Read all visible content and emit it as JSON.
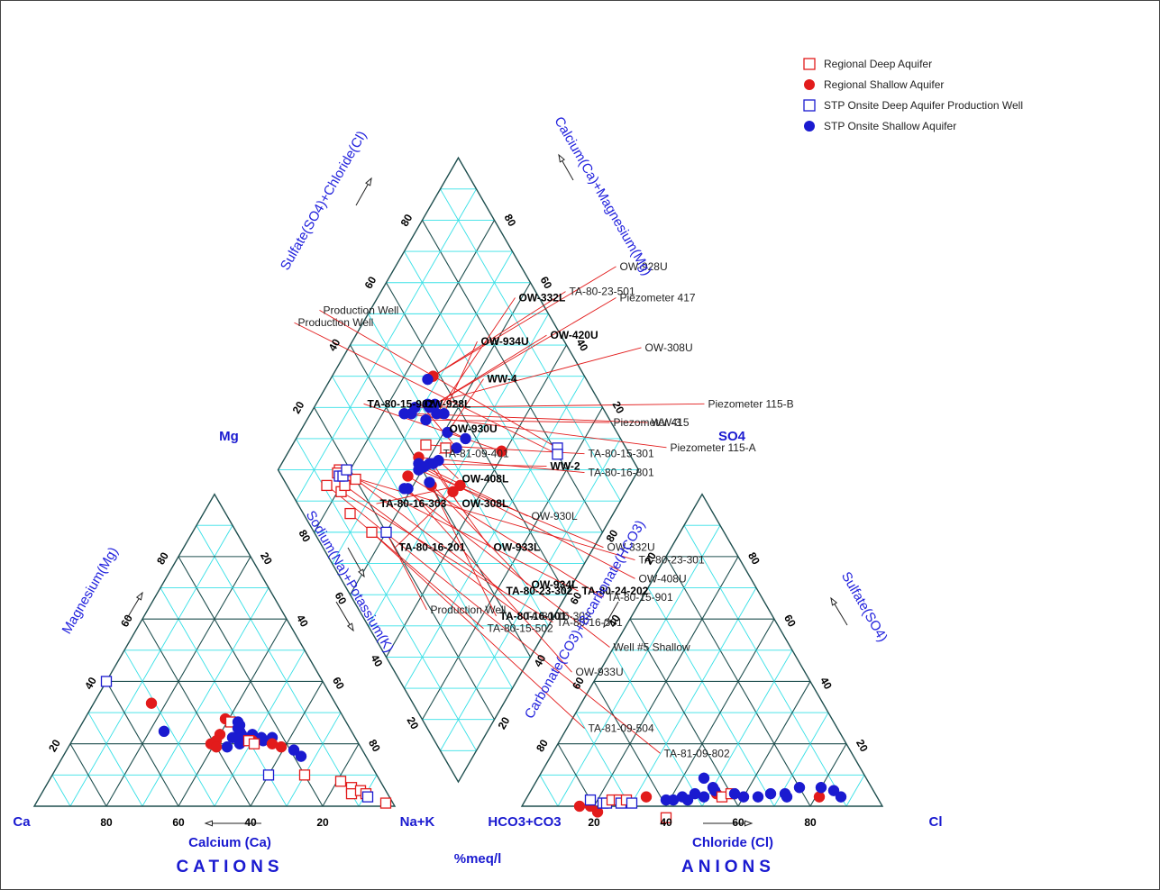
{
  "chart_data": {
    "type": "scatter",
    "subtype": "piper-trilinear-diagram",
    "units_label": "%meq/l",
    "legend": [
      {
        "key": "rda",
        "label": "Regional Deep Aquifer",
        "marker": "open-square",
        "color": "#e21b1b"
      },
      {
        "key": "rsa",
        "label": "Regional Shallow Aquifer",
        "marker": "filled-circle",
        "color": "#e21b1b"
      },
      {
        "key": "sda",
        "label": "STP Onsite Deep Aquifer Production Well",
        "marker": "open-square",
        "color": "#1a1ad0"
      },
      {
        "key": "ssa",
        "label": "STP Onsite Shallow Aquifer",
        "marker": "filled-circle",
        "color": "#1a1ad0"
      }
    ],
    "cation_triangle": {
      "title": "CATIONS",
      "corners": {
        "left": "Ca",
        "top": "Mg",
        "right": "Na+K"
      },
      "axis_labels": {
        "bottom": "Calcium (Ca)",
        "left": "Magnesium(Mg)",
        "right": "Sodium(Na)+Potassium(K)"
      },
      "bottom_ticks": [
        "80",
        "60",
        "40",
        "20"
      ],
      "left_ticks": [
        "20",
        "40",
        "60",
        "80"
      ],
      "right_ticks": [
        "20",
        "40",
        "60",
        "80"
      ],
      "points": [
        {
          "series": "sda",
          "mg": 40,
          "na": 0
        },
        {
          "series": "rsa",
          "mg": 33,
          "na": 16
        },
        {
          "series": "rsa",
          "mg": 28,
          "na": 39
        },
        {
          "series": "rda",
          "mg": 27,
          "na": 41
        },
        {
          "series": "ssa",
          "mg": 24,
          "na": 24
        },
        {
          "series": "ssa",
          "mg": 27,
          "na": 43
        },
        {
          "series": "ssa",
          "mg": 26,
          "na": 44
        },
        {
          "series": "ssa",
          "mg": 25,
          "na": 44
        },
        {
          "series": "ssa",
          "mg": 24,
          "na": 45
        },
        {
          "series": "ssa",
          "mg": 23,
          "na": 46
        },
        {
          "series": "ssa",
          "mg": 22,
          "na": 47
        },
        {
          "series": "ssa",
          "mg": 21,
          "na": 48
        },
        {
          "series": "ssa",
          "mg": 22,
          "na": 44
        },
        {
          "series": "ssa",
          "mg": 23,
          "na": 49
        },
        {
          "series": "ssa",
          "mg": 22,
          "na": 52
        },
        {
          "series": "ssa",
          "mg": 21,
          "na": 53
        },
        {
          "series": "ssa",
          "mg": 20,
          "na": 47
        },
        {
          "series": "ssa",
          "mg": 19,
          "na": 44
        },
        {
          "series": "ssa",
          "mg": 22,
          "na": 55
        },
        {
          "series": "rsa",
          "mg": 23,
          "na": 40
        },
        {
          "series": "rsa",
          "mg": 21,
          "na": 40
        },
        {
          "series": "rsa",
          "mg": 20,
          "na": 39
        },
        {
          "series": "rsa",
          "mg": 19,
          "na": 41
        },
        {
          "series": "rsa",
          "mg": 21,
          "na": 50
        },
        {
          "series": "rsa",
          "mg": 20,
          "na": 56
        },
        {
          "series": "rsa",
          "mg": 19,
          "na": 59
        },
        {
          "series": "rda",
          "mg": 21,
          "na": 49
        },
        {
          "series": "rda",
          "mg": 20,
          "na": 51
        },
        {
          "series": "ssa",
          "mg": 18,
          "na": 63
        },
        {
          "series": "ssa",
          "mg": 16,
          "na": 66
        },
        {
          "series": "sda",
          "mg": 10,
          "na": 60
        },
        {
          "series": "rda",
          "mg": 10,
          "na": 70
        },
        {
          "series": "rda",
          "mg": 8,
          "na": 81
        },
        {
          "series": "rda",
          "mg": 6,
          "na": 85
        },
        {
          "series": "rda",
          "mg": 4,
          "na": 86
        },
        {
          "series": "rda",
          "mg": 5,
          "na": 88
        },
        {
          "series": "rda",
          "mg": 4,
          "na": 90
        },
        {
          "series": "sda",
          "mg": 3,
          "na": 91
        },
        {
          "series": "rda",
          "mg": 1,
          "na": 97
        }
      ]
    },
    "anion_triangle": {
      "title": "ANIONS",
      "corners": {
        "left": "HCO3+CO3",
        "top": "SO4",
        "right": "Cl"
      },
      "axis_labels": {
        "bottom": "Chloride (Cl)",
        "left": "Carbonate(CO3)+Bicarbonate(HCO3)",
        "right": "Sulfate(SO4)"
      },
      "bottom_ticks": [
        "20",
        "40",
        "60",
        "80"
      ],
      "left_ticks": [
        "80",
        "60",
        "40",
        "20"
      ],
      "right_ticks": [
        "80",
        "60",
        "40",
        "20"
      ],
      "points": [
        {
          "series": "rsa",
          "so4": 0,
          "cl": 16
        },
        {
          "series": "rsa",
          "so4": 0,
          "cl": 19
        },
        {
          "series": "rsa",
          "so4": -2,
          "cl": 21
        },
        {
          "series": "sda",
          "so4": 2,
          "cl": 18
        },
        {
          "series": "sda",
          "so4": 1,
          "cl": 22
        },
        {
          "series": "sda",
          "so4": 1,
          "cl": 23
        },
        {
          "series": "rda",
          "so4": 2,
          "cl": 24
        },
        {
          "series": "rda",
          "so4": 2,
          "cl": 26
        },
        {
          "series": "sda",
          "so4": 1,
          "cl": 27
        },
        {
          "series": "rda",
          "so4": 2,
          "cl": 28
        },
        {
          "series": "sda",
          "so4": 1,
          "cl": 30
        },
        {
          "series": "rda",
          "so4": -4,
          "cl": 40
        },
        {
          "series": "rsa",
          "so4": 3,
          "cl": 33
        },
        {
          "series": "ssa",
          "so4": 2,
          "cl": 39
        },
        {
          "series": "ssa",
          "so4": 2,
          "cl": 41
        },
        {
          "series": "ssa",
          "so4": 3,
          "cl": 43
        },
        {
          "series": "ssa",
          "so4": 2,
          "cl": 45
        },
        {
          "series": "ssa",
          "so4": 4,
          "cl": 46
        },
        {
          "series": "ssa",
          "so4": 3,
          "cl": 49
        },
        {
          "series": "ssa",
          "so4": 9,
          "cl": 46
        },
        {
          "series": "rsa",
          "so4": 4,
          "cl": 52
        },
        {
          "series": "ssa",
          "so4": 5,
          "cl": 51
        },
        {
          "series": "ssa",
          "so4": 6,
          "cl": 50
        },
        {
          "series": "rda",
          "so4": 3,
          "cl": 54
        },
        {
          "series": "rda",
          "so4": 4,
          "cl": 56
        },
        {
          "series": "ssa",
          "so4": 4,
          "cl": 57
        },
        {
          "series": "ssa",
          "so4": 3,
          "cl": 60
        },
        {
          "series": "ssa",
          "so4": 3,
          "cl": 64
        },
        {
          "series": "ssa",
          "so4": 4,
          "cl": 67
        },
        {
          "series": "ssa",
          "so4": 4,
          "cl": 71
        },
        {
          "series": "ssa",
          "so4": 3,
          "cl": 72
        },
        {
          "series": "ssa",
          "so4": 6,
          "cl": 74
        },
        {
          "series": "rsa",
          "so4": 3,
          "cl": 81
        },
        {
          "series": "ssa",
          "so4": 6,
          "cl": 80
        },
        {
          "series": "ssa",
          "so4": 5,
          "cl": 84
        },
        {
          "series": "ssa",
          "so4": 3,
          "cl": 87
        }
      ]
    },
    "diamond": {
      "axis_labels": {
        "upper_left": "Sulfate(SO4)+Chloride(Cl)",
        "upper_right": "Calcium(Ca)+Magnesium(Mg)",
        "lower_left": "Sodium(Na)+Potassium(K)",
        "lower_right": "Carbonate(CO3)+Bicarbonate(HCO3)"
      },
      "upper_left_ticks": [
        "20",
        "40",
        "60",
        "80"
      ],
      "upper_right_ticks": [
        "20",
        "40",
        "60",
        "80"
      ],
      "lower_left_ticks": [
        "20",
        "40",
        "60",
        "80"
      ],
      "lower_right_ticks": [
        "20",
        "40",
        "60",
        "80"
      ],
      "points": [
        {
          "series": "sda",
          "label": "Production Well",
          "bold": false,
          "na": 26,
          "cl": 81,
          "lx": 28,
          "ly": 75
        },
        {
          "series": "sda",
          "label": "Production Well",
          "bold": false,
          "na": 25,
          "cl": 80,
          "lx": 24,
          "ly": 73
        },
        {
          "series": "rsa",
          "label": "TA-80-15-902",
          "bold": true,
          "na": 41,
          "cl": 65,
          "lx": 35,
          "ly": 60
        },
        {
          "series": "ssa",
          "label": "OW-930U",
          "bold": true,
          "na": 53,
          "cl": 57,
          "lx": 48,
          "ly": 56
        },
        {
          "series": "rda",
          "label": "TA-81-09-401",
          "bold": false,
          "na": 57,
          "cl": 50,
          "lx": 47,
          "ly": 52
        },
        {
          "series": "ssa",
          "label": "OW-928L",
          "bold": true,
          "na": 54,
          "cl": 53,
          "lx": 44,
          "ly": 60
        },
        {
          "series": "ssa",
          "label": "WW-4",
          "bold": true,
          "na": 59,
          "cl": 53,
          "lx": 54,
          "ly": 64
        },
        {
          "series": "ssa",
          "label": "OW-934U",
          "bold": true,
          "na": 63,
          "cl": 55,
          "lx": 53,
          "ly": 70
        },
        {
          "series": "ssa",
          "label": "OW-332L",
          "bold": true,
          "na": 65,
          "cl": 53,
          "lx": 59,
          "ly": 77
        },
        {
          "series": "ssa",
          "label": "OW-420U",
          "bold": true,
          "na": 67,
          "cl": 54,
          "lx": 64,
          "ly": 71
        },
        {
          "series": "rsa",
          "label": "TA-80-23-501",
          "bold": false,
          "na": 72,
          "cl": 58,
          "lx": 67,
          "ly": 78
        },
        {
          "series": "ssa",
          "label": "OW-928U",
          "bold": false,
          "na": 73,
          "cl": 56,
          "lx": 75,
          "ly": 82
        },
        {
          "series": "ssa",
          "label": "Piezometer 417",
          "bold": false,
          "na": 68,
          "cl": 52,
          "lx": 75,
          "ly": 77
        },
        {
          "series": "ssa",
          "label": "OW-308U",
          "bold": false,
          "na": 69,
          "cl": 52,
          "lx": 79,
          "ly": 69
        },
        {
          "series": "ssa",
          "label": "Piezometer 115-B",
          "bold": false,
          "na": 72,
          "cl": 48,
          "lx": 89,
          "ly": 60
        },
        {
          "series": "ssa",
          "label": "WW-3",
          "bold": false,
          "na": 72,
          "cl": 46,
          "lx": 80,
          "ly": 57
        },
        {
          "series": "ssa",
          "label": "Piezometer 115-A",
          "bold": false,
          "na": 74,
          "cl": 44,
          "lx": 83,
          "ly": 53
        },
        {
          "series": "ssa",
          "label": "Piezometer 415",
          "bold": false,
          "na": 67,
          "cl": 49,
          "lx": 74,
          "ly": 57
        },
        {
          "series": "rda",
          "label": "TA-80-15-301",
          "bold": false,
          "na": 63,
          "cl": 45,
          "lx": 70,
          "ly": 52
        },
        {
          "series": "rsa",
          "label": "TA-80-16-801",
          "bold": false,
          "na": 63,
          "cl": 41,
          "lx": 70,
          "ly": 49
        },
        {
          "series": "ssa",
          "label": "WW-2",
          "bold": true,
          "na": 62,
          "cl": 40,
          "lx": 64,
          "ly": 50
        },
        {
          "series": "ssa",
          "label": "OW-408L",
          "bold": true,
          "na": 57,
          "cl": 46,
          "lx": 50,
          "ly": 48
        },
        {
          "series": "ssa",
          "label": "OW-308L",
          "bold": true,
          "na": 58,
          "cl": 44,
          "lx": 50,
          "ly": 44
        },
        {
          "series": "ssa",
          "label": "OW-933L",
          "bold": true,
          "na": 59,
          "cl": 43,
          "lx": 55,
          "ly": 37
        },
        {
          "series": "ssa",
          "label": "OW-930L",
          "bold": false,
          "na": 60,
          "cl": 41,
          "lx": 61,
          "ly": 42
        },
        {
          "series": "ssa",
          "label": "OW-408U",
          "bold": false,
          "na": 61,
          "cl": 40,
          "lx": 78,
          "ly": 32
        },
        {
          "series": "ssa",
          "label": "OW-332U",
          "bold": false,
          "na": 61,
          "cl": 39,
          "lx": 73,
          "ly": 37
        },
        {
          "series": "rsa",
          "label": "TA-80-15-901",
          "bold": false,
          "na": 63,
          "cl": 35,
          "lx": 73,
          "ly": 29
        },
        {
          "series": "rsa",
          "label": "TA-80-16-303",
          "bold": true,
          "na": 47,
          "cl": 48,
          "lx": 37,
          "ly": 44
        },
        {
          "series": "rsa",
          "label": "TA-80-16-201",
          "bold": true,
          "na": 48,
          "cl": 45,
          "lx": 40,
          "ly": 37
        },
        {
          "series": "rsa",
          "label": "TA-80-16-101",
          "bold": true,
          "na": 55,
          "cl": 40,
          "lx": 56,
          "ly": 26
        },
        {
          "series": "ssa",
          "label": "OW-934L",
          "bold": true,
          "na": 56,
          "cl": 40,
          "lx": 61,
          "ly": 31
        },
        {
          "series": "ssa",
          "label": "Well #5 Shallow",
          "bold": false,
          "na": 62,
          "cl": 32,
          "lx": 74,
          "ly": 21
        },
        {
          "series": "ssa",
          "label": "OW-933U",
          "bold": false,
          "na": 61,
          "cl": 33,
          "lx": 68,
          "ly": 17
        },
        {
          "series": "sda",
          "label": "Production Well",
          "bold": false,
          "na": 60,
          "cl": 20,
          "lx": 45,
          "ly": 27
        },
        {
          "series": "rda",
          "label": "TA-81-09-504",
          "bold": false,
          "na": 64,
          "cl": 16,
          "lx": 70,
          "ly": 8
        },
        {
          "series": "rda",
          "label": "TA-80-15-502",
          "bold": false,
          "na": 73,
          "cl": 13,
          "lx": 54,
          "ly": 24
        },
        {
          "series": "rda",
          "label": "TA-81-09-802",
          "bold": false,
          "na": 84,
          "cl": 11,
          "lx": 82,
          "ly": 4
        },
        {
          "series": "rda",
          "label": "TA-80-16-301",
          "bold": false,
          "na": 79,
          "cl": 14,
          "lx": 65,
          "ly": 25
        },
        {
          "series": "rda",
          "label": "TA-80-16-302",
          "bold": false,
          "na": 79,
          "cl": 16,
          "lx": 60,
          "ly": 26
        },
        {
          "series": "rda",
          "label": "TA-80-23-302",
          "bold": true,
          "na": 77,
          "cl": 20,
          "lx": 57,
          "ly": 30
        },
        {
          "series": "rda",
          "label": "TA-80-24-202",
          "bold": true,
          "na": 83,
          "cl": 17,
          "lx": 69,
          "ly": 30
        },
        {
          "series": "rda",
          "label": "TA-80-23-301",
          "bold": false,
          "na": 83,
          "cl": 16,
          "lx": 78,
          "ly": 35
        },
        {
          "series": "sda",
          "label": "",
          "bold": false,
          "na": 82,
          "cl": 16
        },
        {
          "series": "sda",
          "label": "",
          "bold": false,
          "na": 81,
          "cl": 17
        },
        {
          "series": "sda",
          "label": "",
          "bold": false,
          "na": 81,
          "cl": 19
        }
      ]
    }
  }
}
